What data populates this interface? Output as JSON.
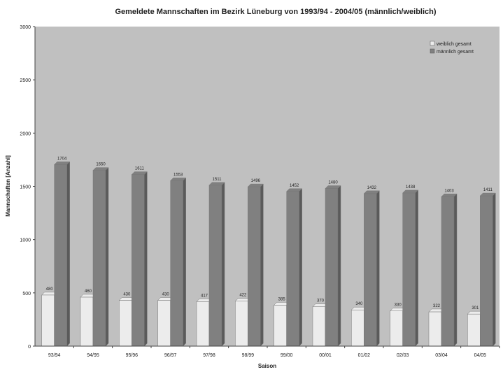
{
  "chart_data": {
    "type": "bar",
    "title": "Gemeldete Mannschaften im Bezirk Lüneburg von 1993/94 - 2004/05 (männlich/weiblich)",
    "xlabel": "Saison",
    "ylabel": "Mannschaften [Anzahl]",
    "ylim": [
      0,
      3000
    ],
    "yticks": [
      0,
      500,
      1000,
      1500,
      2000,
      2500,
      3000
    ],
    "categories": [
      "93/94",
      "94/95",
      "95/96",
      "96/97",
      "97/98",
      "98/99",
      "99/00",
      "00/01",
      "01/02",
      "02/03",
      "03/04",
      "04/05"
    ],
    "series": [
      {
        "name": "weiblich gesamt",
        "color": "#ececec",
        "values": [
          480,
          460,
          430,
          430,
          417,
          422,
          385,
          370,
          340,
          330,
          322,
          301
        ]
      },
      {
        "name": "männlich gesamt",
        "color": "#808080",
        "values": [
          1704,
          1650,
          1611,
          1553,
          1511,
          1496,
          1452,
          1480,
          1432,
          1438,
          1403,
          1411
        ]
      }
    ],
    "legend": "top-right",
    "grid": false,
    "plot_bg": "#c0c0c0"
  }
}
